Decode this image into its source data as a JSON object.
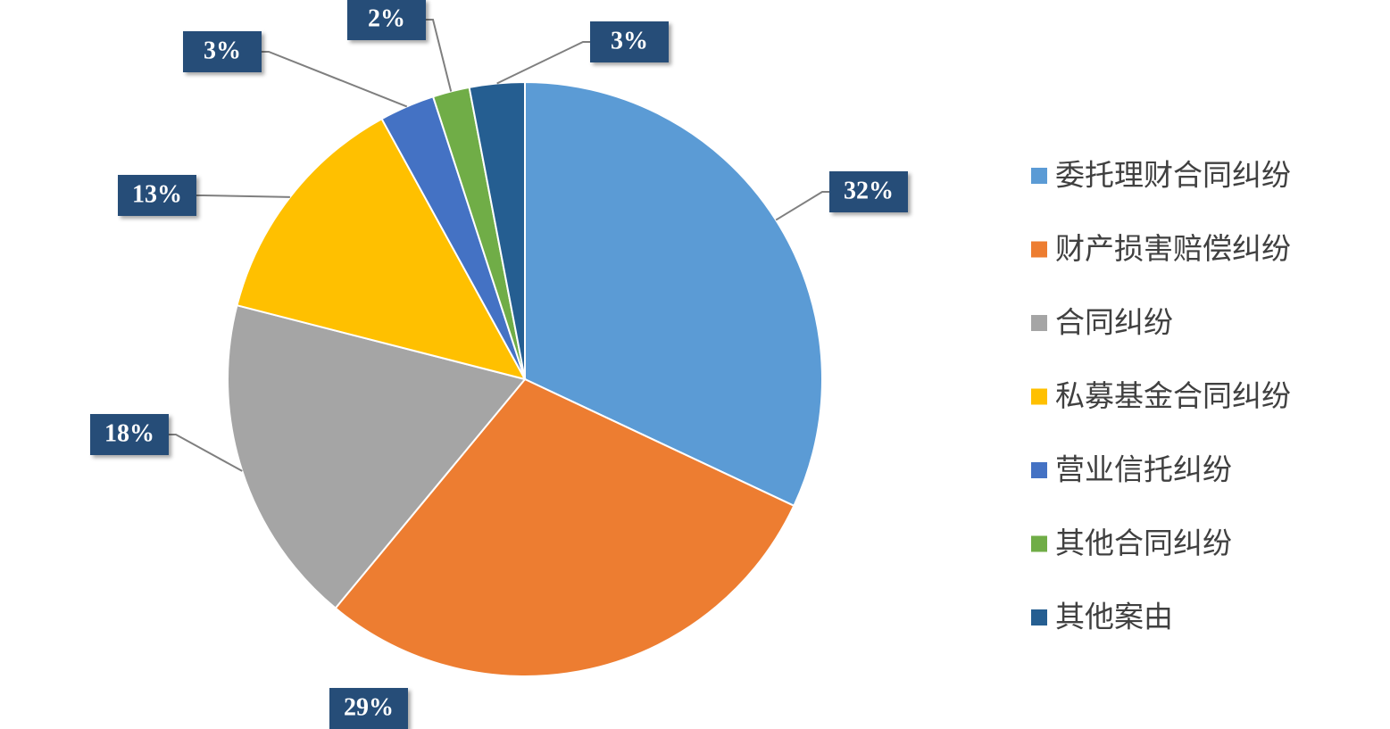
{
  "chart_data": {
    "type": "pie",
    "categories": [
      "委托理财合同纠纷",
      "财产损害赔偿纠纷",
      "合同纠纷",
      "私募基金合同纠纷",
      "营业信托纠纷",
      "其他合同纠纷",
      "其他案由"
    ],
    "values": [
      32,
      29,
      18,
      13,
      3,
      2,
      3
    ],
    "value_labels": [
      "32%",
      "29%",
      "18%",
      "13%",
      "3%",
      "2%",
      "3%"
    ],
    "colors": [
      "#5b9bd5",
      "#ed7d31",
      "#a5a5a5",
      "#ffc000",
      "#4472c4",
      "#70ad47",
      "#255e91"
    ],
    "legend": "right"
  }
}
